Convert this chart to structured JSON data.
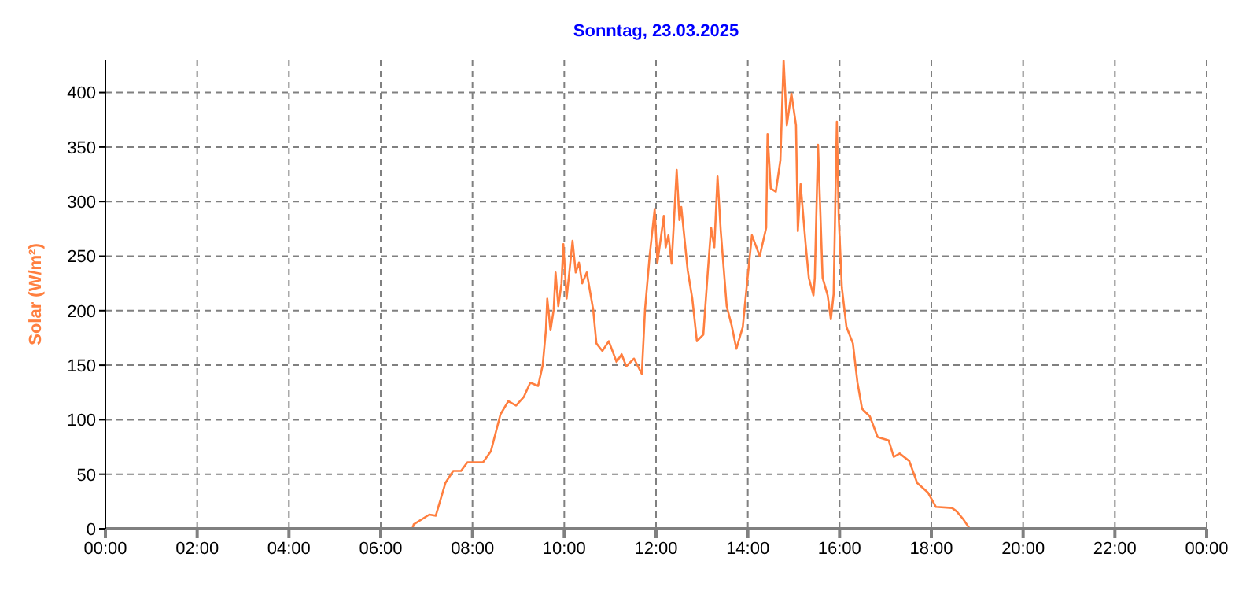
{
  "chart_data": {
    "type": "line",
    "title": "Sonntag, 23.03.2025",
    "ylabel": "Solar (W/m²)",
    "x": [
      0,
      6.69,
      6.72,
      7.06,
      7.2,
      7.41,
      7.58,
      7.75,
      7.89,
      8.23,
      8.4,
      8.61,
      8.78,
      8.95,
      9.12,
      9.26,
      9.43,
      9.53,
      9.6,
      9.63,
      9.7,
      9.77,
      9.81,
      9.87,
      9.94,
      9.98,
      10.05,
      10.11,
      10.18,
      10.25,
      10.32,
      10.39,
      10.49,
      10.63,
      10.7,
      10.83,
      10.97,
      11.14,
      11.25,
      11.35,
      11.52,
      11.69,
      11.76,
      11.86,
      11.97,
      12.03,
      12.17,
      12.21,
      12.27,
      12.34,
      12.45,
      12.51,
      12.55,
      12.69,
      12.79,
      12.89,
      13.03,
      13.13,
      13.2,
      13.27,
      13.34,
      13.41,
      13.54,
      13.65,
      13.75,
      13.89,
      13.99,
      14.09,
      14.26,
      14.4,
      14.43,
      14.5,
      14.61,
      14.71,
      14.78,
      14.85,
      14.91,
      14.95,
      15.05,
      15.09,
      15.15,
      15.26,
      15.33,
      15.43,
      15.46,
      15.53,
      15.63,
      15.74,
      15.81,
      15.87,
      15.94,
      15.98,
      16.05,
      16.15,
      16.29,
      16.39,
      16.49,
      16.66,
      16.83,
      17.07,
      17.18,
      17.31,
      17.52,
      17.69,
      17.93,
      18.1,
      18.45,
      18.55,
      18.69,
      18.82,
      18.86,
      24
    ],
    "series": [
      {
        "color": "#ff7f3f",
        "values": [
          0,
          0,
          4,
          13,
          12,
          42,
          53,
          53,
          61,
          61,
          71,
          105,
          117,
          113,
          121,
          134,
          131,
          150,
          182,
          211,
          182,
          201,
          235,
          204,
          225,
          261,
          211,
          235,
          264,
          235,
          244,
          225,
          235,
          201,
          170,
          163,
          172,
          153,
          160,
          149,
          156,
          142,
          201,
          250,
          293,
          244,
          287,
          258,
          269,
          243,
          329,
          283,
          295,
          237,
          211,
          172,
          178,
          237,
          276,
          258,
          323,
          273,
          204,
          186,
          165,
          185,
          228,
          269,
          250,
          276,
          362,
          312,
          309,
          338,
          430,
          370,
          388,
          399,
          370,
          273,
          316,
          261,
          230,
          214,
          230,
          352,
          230,
          214,
          192,
          215,
          373,
          287,
          221,
          185,
          170,
          134,
          110,
          103,
          84,
          81,
          66,
          69,
          62,
          42,
          33,
          20,
          19,
          16,
          9,
          1,
          0,
          0
        ]
      }
    ],
    "xlim": [
      0,
      24
    ],
    "xticks": [
      {
        "value": 0,
        "label": "00:00"
      },
      {
        "value": 2,
        "label": "02:00"
      },
      {
        "value": 4,
        "label": "04:00"
      },
      {
        "value": 6,
        "label": "06:00"
      },
      {
        "value": 8,
        "label": "08:00"
      },
      {
        "value": 10,
        "label": "10:00"
      },
      {
        "value": 12,
        "label": "12:00"
      },
      {
        "value": 14,
        "label": "14:00"
      },
      {
        "value": 16,
        "label": "16:00"
      },
      {
        "value": 18,
        "label": "18:00"
      },
      {
        "value": 20,
        "label": "20:00"
      },
      {
        "value": 22,
        "label": "22:00"
      },
      {
        "value": 24,
        "label": "00:00"
      }
    ],
    "ylim": [
      0,
      430
    ],
    "yticks": [
      0,
      50,
      100,
      150,
      200,
      250,
      300,
      350,
      400
    ],
    "grid": true,
    "marker": "none",
    "line_style": "solid"
  }
}
